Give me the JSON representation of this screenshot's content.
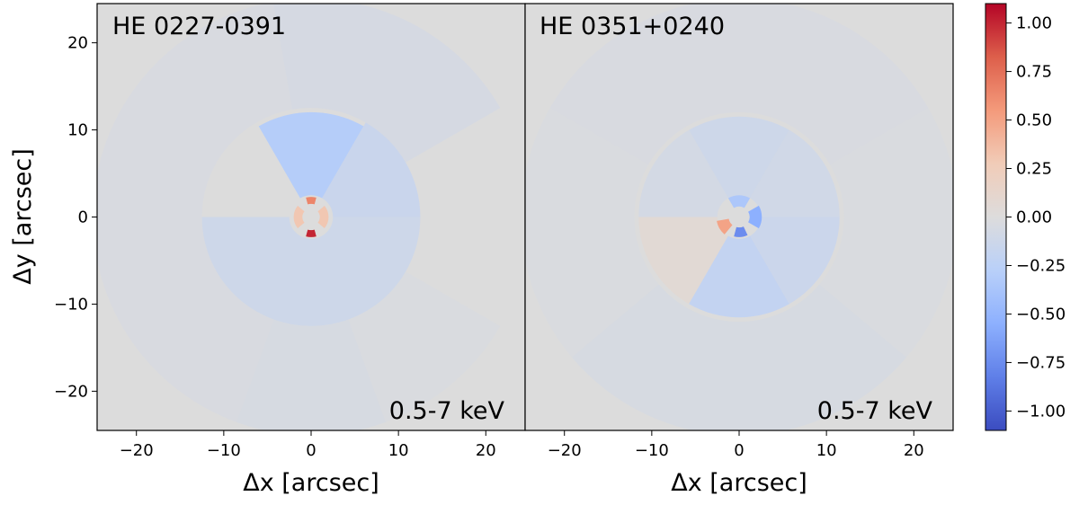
{
  "figure": {
    "ylabel": "Δy [arcsec]",
    "colorbar_ticks": [
      "1.00",
      "0.75",
      "0.50",
      "0.25",
      "0.00",
      "−0.25",
      "−0.50",
      "−0.75",
      "−1.00"
    ]
  },
  "chart_data": [
    {
      "type": "heatmap",
      "panel_label": "HE 0227-0391",
      "energy_band": "0.5-7 keV",
      "xlabel": "Δx [arcsec]",
      "ylabel": "Δy [arcsec]",
      "xlim": [
        -24.5,
        24.5
      ],
      "ylim": [
        -24.5,
        24.5
      ],
      "x_ticks": [
        "−20",
        "−10",
        "0",
        "10",
        "20"
      ],
      "y_ticks": [
        "−20",
        "−10",
        "0",
        "10",
        "20"
      ],
      "color_scale": {
        "min": -1.1,
        "max": 1.1,
        "colormap": "coolwarm"
      },
      "background_value": 0.0,
      "regions": [
        {
          "r_in": 12.5,
          "r_out": 25.0,
          "theta_start": 30,
          "theta_end": 100,
          "value": -0.06
        },
        {
          "r_in": 12.5,
          "r_out": 25.0,
          "theta_start": 100,
          "theta_end": 180,
          "value": -0.04
        },
        {
          "r_in": 12.5,
          "r_out": 25.0,
          "theta_start": 180,
          "theta_end": 250,
          "value": -0.04
        },
        {
          "r_in": 12.5,
          "r_out": 25.0,
          "theta_start": 250,
          "theta_end": 290,
          "value": -0.05
        },
        {
          "r_in": 12.5,
          "r_out": 25.0,
          "theta_start": 290,
          "theta_end": 330,
          "value": -0.03
        },
        {
          "r_in": 2.5,
          "r_out": 12.5,
          "theta_start": 0,
          "theta_end": 60,
          "value": -0.15
        },
        {
          "r_in": 2.5,
          "r_out": 12.0,
          "theta_start": 60,
          "theta_end": 120,
          "value": -0.3
        },
        {
          "r_in": 2.5,
          "r_out": 12.5,
          "theta_start": 180,
          "theta_end": 360,
          "value": -0.12
        },
        {
          "r_in": 1.5,
          "r_out": 2.3,
          "theta_start": 75,
          "theta_end": 105,
          "value": 0.65
        },
        {
          "r_in": 1.5,
          "r_out": 2.3,
          "theta_start": 255,
          "theta_end": 285,
          "value": 1.0
        },
        {
          "r_in": 1.0,
          "r_out": 2.0,
          "theta_start": 140,
          "theta_end": 220,
          "value": 0.3
        },
        {
          "r_in": 1.0,
          "r_out": 2.0,
          "theta_start": 320,
          "theta_end": 400,
          "value": 0.3
        }
      ]
    },
    {
      "type": "heatmap",
      "panel_label": "HE 0351+0240",
      "energy_band": "0.5-7 keV",
      "xlabel": "Δx [arcsec]",
      "ylabel": "",
      "xlim": [
        -24.5,
        24.5
      ],
      "ylim": [
        -24.5,
        24.5
      ],
      "x_ticks": [
        "−20",
        "−10",
        "0",
        "10",
        "20"
      ],
      "y_ticks": [],
      "color_scale": {
        "min": -1.1,
        "max": 1.1,
        "colormap": "coolwarm"
      },
      "background_value": 0.0,
      "regions": [
        {
          "r_in": 12.0,
          "r_out": 25.0,
          "theta_start": 30,
          "theta_end": 150,
          "value": -0.04
        },
        {
          "r_in": 12.0,
          "r_out": 25.0,
          "theta_start": 150,
          "theta_end": 220,
          "value": -0.03
        },
        {
          "r_in": 12.0,
          "r_out": 25.0,
          "theta_start": 220,
          "theta_end": 320,
          "value": -0.05
        },
        {
          "r_in": 12.0,
          "r_out": 25.0,
          "theta_start": 320,
          "theta_end": 390,
          "value": -0.03
        },
        {
          "r_in": 2.5,
          "r_out": 11.5,
          "theta_start": 0,
          "theta_end": 60,
          "value": -0.1
        },
        {
          "r_in": 2.5,
          "r_out": 11.5,
          "theta_start": 60,
          "theta_end": 120,
          "value": -0.12
        },
        {
          "r_in": 2.5,
          "r_out": 11.5,
          "theta_start": 120,
          "theta_end": 180,
          "value": -0.08
        },
        {
          "r_in": 2.5,
          "r_out": 11.5,
          "theta_start": 180,
          "theta_end": 240,
          "value": 0.06
        },
        {
          "r_in": 2.5,
          "r_out": 11.5,
          "theta_start": 240,
          "theta_end": 300,
          "value": -0.2
        },
        {
          "r_in": 2.5,
          "r_out": 11.5,
          "theta_start": 300,
          "theta_end": 360,
          "value": -0.14
        },
        {
          "r_in": 1.2,
          "r_out": 2.5,
          "theta_start": 60,
          "theta_end": 120,
          "value": -0.35
        },
        {
          "r_in": 1.2,
          "r_out": 2.6,
          "theta_start": 330,
          "theta_end": 390,
          "value": -0.55
        },
        {
          "r_in": 1.2,
          "r_out": 2.6,
          "theta_start": 190,
          "theta_end": 230,
          "value": 0.5
        },
        {
          "r_in": 1.2,
          "r_out": 2.3,
          "theta_start": 255,
          "theta_end": 295,
          "value": -0.75
        }
      ]
    }
  ]
}
